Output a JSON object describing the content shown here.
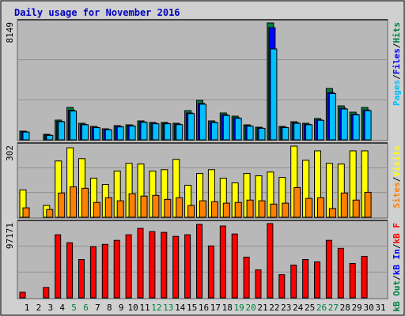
{
  "title": "Daily usage for November 2016",
  "chart_data": [
    {
      "type": "bar",
      "ylim": [
        0,
        8149
      ],
      "ymax_label": "8149",
      "legend_separator": "/",
      "grid_divisions": 3,
      "series": [
        {
          "name": "Hits",
          "color": "#008040",
          "values": [
            606,
            0,
            385,
            1376,
            2257,
            1156,
            936,
            771,
            991,
            1046,
            1321,
            1211,
            1211,
            1156,
            2037,
            2753,
            1321,
            1872,
            1652,
            1046,
            881,
            8149,
            936,
            1266,
            1156,
            1487,
            3579,
            2368,
            1927,
            2257,
            0
          ]
        },
        {
          "name": "Files",
          "color": "#0000ff",
          "values": [
            560,
            0,
            330,
            1290,
            2060,
            1080,
            870,
            720,
            930,
            990,
            1250,
            1150,
            1150,
            1090,
            1870,
            2540,
            1230,
            1740,
            1540,
            980,
            820,
            7818,
            870,
            1180,
            1080,
            1390,
            3300,
            2200,
            1790,
            2080,
            0
          ]
        },
        {
          "name": "Pages",
          "color": "#00c0ff",
          "values": [
            540,
            0,
            310,
            1260,
            2010,
            1050,
            850,
            700,
            900,
            960,
            1220,
            1120,
            1120,
            1060,
            1830,
            2480,
            1200,
            1700,
            1500,
            950,
            800,
            6332,
            850,
            1150,
            1050,
            1360,
            3220,
            2150,
            1750,
            2030,
            0
          ]
        }
      ]
    },
    {
      "type": "bar",
      "ylim": [
        0,
        302
      ],
      "ymax_label": "302",
      "legend_separator": "/",
      "grid_divisions": 3,
      "series": [
        {
          "name": "Visits",
          "color": "#ffff00",
          "values": [
            116,
            0,
            50,
            239,
            295,
            249,
            166,
            139,
            196,
            229,
            226,
            196,
            202,
            246,
            136,
            186,
            202,
            166,
            146,
            186,
            176,
            192,
            169,
            302,
            242,
            282,
            229,
            226,
            282,
            282,
            0
          ]
        },
        {
          "name": "Sites",
          "color": "#ff8000",
          "values": [
            40,
            0,
            33,
            103,
            129,
            123,
            63,
            83,
            70,
            100,
            90,
            93,
            76,
            83,
            50,
            70,
            66,
            60,
            63,
            73,
            70,
            56,
            60,
            126,
            80,
            83,
            37,
            103,
            73,
            106,
            0
          ]
        }
      ]
    },
    {
      "type": "bar",
      "ylim": [
        0,
        97171
      ],
      "ymax_label": "97171",
      "legend_separator": "/",
      "grid_divisions": 3,
      "series": [
        {
          "name": "kB F",
          "color": "#ff0000",
          "values": [
            7314,
            0,
            13583,
            82542,
            72095,
            50152,
            66871,
            70006,
            75230,
            82542,
            90901,
            86722,
            85677,
            80453,
            82542,
            96126,
            67916,
            94036,
            83588,
            53287,
            36568,
            97171,
            30299,
            42840,
            50152,
            47017,
            75230,
            64781,
            44930,
            54332,
            0
          ]
        }
      ],
      "legend_extra": [
        {
          "name": "kB In",
          "color": "#0000ff"
        },
        {
          "name": "kB Out",
          "color": "#008040"
        }
      ],
      "categories": [
        "1",
        "2",
        "3",
        "4",
        "5",
        "6",
        "7",
        "8",
        "9",
        "10",
        "11",
        "12",
        "13",
        "14",
        "15",
        "16",
        "17",
        "18",
        "19",
        "20",
        "21",
        "22",
        "23",
        "24",
        "25",
        "26",
        "27",
        "28",
        "29",
        "30",
        "31"
      ],
      "category_colors": [
        "#000",
        "#000",
        "#000",
        "#000",
        "#008040",
        "#008040",
        "#000",
        "#000",
        "#000",
        "#000",
        "#000",
        "#008040",
        "#008040",
        "#000",
        "#000",
        "#000",
        "#000",
        "#000",
        "#008040",
        "#008040",
        "#000",
        "#000",
        "#000",
        "#000",
        "#000",
        "#008040",
        "#008040",
        "#000",
        "#000",
        "#000",
        "#000"
      ]
    }
  ]
}
